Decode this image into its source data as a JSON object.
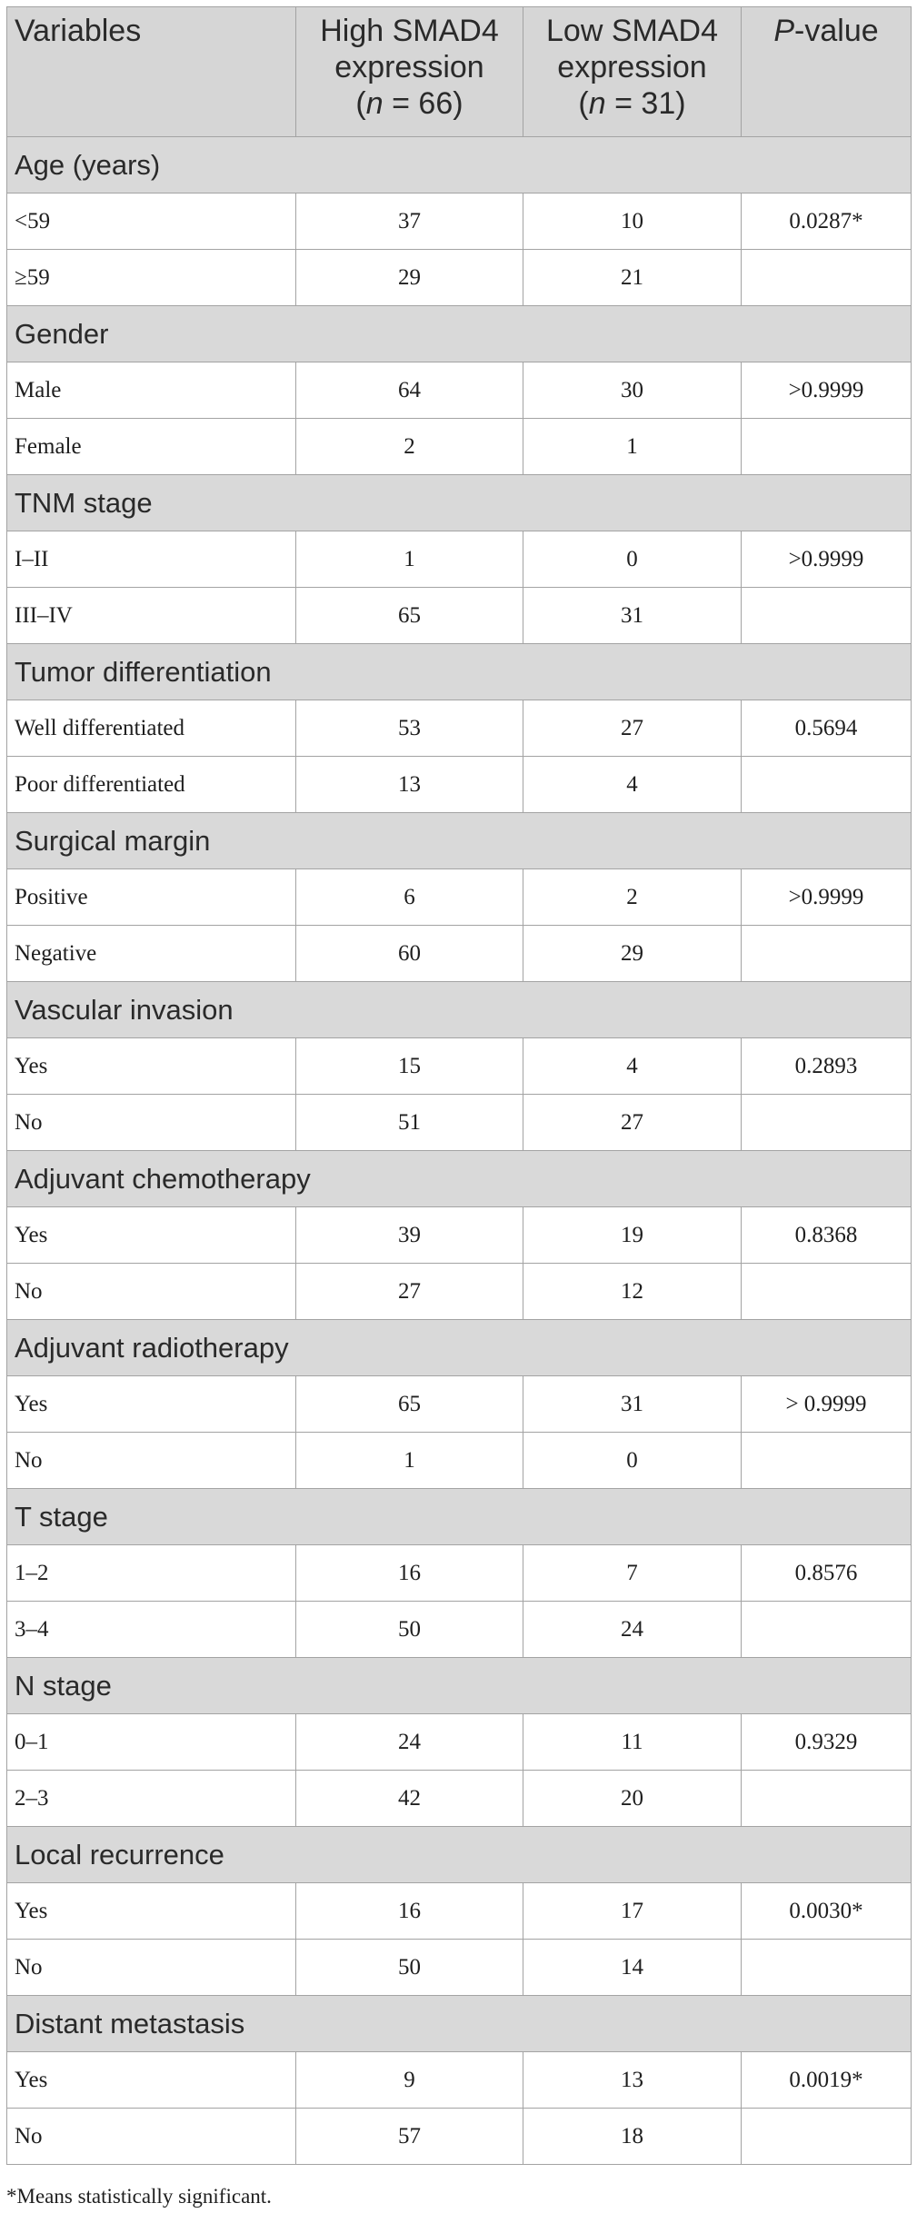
{
  "header": {
    "col1": "Variables",
    "col2_line1": "High SMAD4",
    "col2_line2": "expression",
    "col2_n_italic": "n",
    "col2_n_rest": " = 66)",
    "col3_line1": "Low SMAD4",
    "col3_line2": "expression",
    "col3_n_italic": "n",
    "col3_n_rest": " = 31)",
    "col4_italic": "P",
    "col4_rest": "-value"
  },
  "sections": [
    {
      "title": "Age (years)",
      "rows": [
        {
          "label": "<59",
          "high": "37",
          "low": "10",
          "p": "0.0287*"
        },
        {
          "label": "≥59",
          "high": "29",
          "low": "21",
          "p": ""
        }
      ]
    },
    {
      "title": "Gender",
      "rows": [
        {
          "label": "Male",
          "high": "64",
          "low": "30",
          "p": ">0.9999"
        },
        {
          "label": "Female",
          "high": "2",
          "low": "1",
          "p": ""
        }
      ]
    },
    {
      "title": "TNM stage",
      "rows": [
        {
          "label": "I–II",
          "high": "1",
          "low": "0",
          "p": ">0.9999"
        },
        {
          "label": "III–IV",
          "high": "65",
          "low": "31",
          "p": ""
        }
      ]
    },
    {
      "title": "Tumor differentiation",
      "rows": [
        {
          "label": "Well differentiated",
          "high": "53",
          "low": "27",
          "p": "0.5694"
        },
        {
          "label": "Poor differentiated",
          "high": "13",
          "low": "4",
          "p": ""
        }
      ]
    },
    {
      "title": "Surgical margin",
      "rows": [
        {
          "label": "Positive",
          "high": "6",
          "low": "2",
          "p": ">0.9999"
        },
        {
          "label": "Negative",
          "high": "60",
          "low": "29",
          "p": ""
        }
      ]
    },
    {
      "title": "Vascular invasion",
      "rows": [
        {
          "label": "Yes",
          "high": "15",
          "low": "4",
          "p": "0.2893"
        },
        {
          "label": "No",
          "high": "51",
          "low": "27",
          "p": ""
        }
      ]
    },
    {
      "title": "Adjuvant chemotherapy",
      "rows": [
        {
          "label": "Yes",
          "high": "39",
          "low": "19",
          "p": "0.8368"
        },
        {
          "label": "No",
          "high": "27",
          "low": "12",
          "p": ""
        }
      ]
    },
    {
      "title": "Adjuvant radiotherapy",
      "rows": [
        {
          "label": "Yes",
          "high": "65",
          "low": "31",
          "p": "> 0.9999"
        },
        {
          "label": "No",
          "high": "1",
          "low": "0",
          "p": ""
        }
      ]
    },
    {
      "title": "T stage",
      "rows": [
        {
          "label": "1–2",
          "high": "16",
          "low": "7",
          "p": "0.8576"
        },
        {
          "label": "3–4",
          "high": "50",
          "low": "24",
          "p": ""
        }
      ]
    },
    {
      "title": "N stage",
      "rows": [
        {
          "label": "0–1",
          "high": "24",
          "low": "11",
          "p": "0.9329"
        },
        {
          "label": "2–3",
          "high": "42",
          "low": "20",
          "p": ""
        }
      ]
    },
    {
      "title": "Local recurrence",
      "rows": [
        {
          "label": "Yes",
          "high": "16",
          "low": "17",
          "p": "0.0030*"
        },
        {
          "label": "No",
          "high": "50",
          "low": "14",
          "p": ""
        }
      ]
    },
    {
      "title": "Distant metastasis",
      "rows": [
        {
          "label": "Yes",
          "high": "9",
          "low": "13",
          "p": "0.0019*"
        },
        {
          "label": "No",
          "high": "57",
          "low": "18",
          "p": ""
        }
      ]
    }
  ],
  "footnote": "*Means statistically significant."
}
